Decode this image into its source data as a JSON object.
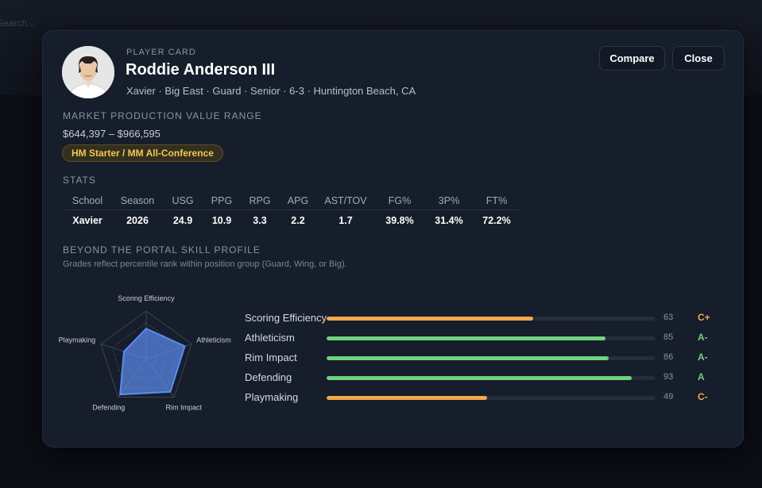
{
  "backdrop": {
    "label": "Search..."
  },
  "header": {
    "eyebrow": "PLAYER CARD",
    "name": "Roddie Anderson III",
    "meta": "Xavier · Big East · Guard · Senior · 6-3 · Huntington Beach, CA",
    "avatar_icon": "player-photo"
  },
  "actions": {
    "compare_label": "Compare",
    "close_label": "Close"
  },
  "market": {
    "section_label": "MARKET PRODUCTION VALUE RANGE",
    "range": "$644,397 – $966,595",
    "badge": "HM Starter / MM All-Conference"
  },
  "stats": {
    "section_label": "STATS",
    "headers": [
      "School",
      "Season",
      "USG",
      "PPG",
      "RPG",
      "APG",
      "AST/TOV",
      "FG%",
      "3P%",
      "FT%"
    ],
    "rows": [
      [
        "Xavier",
        "2026",
        "24.9",
        "10.9",
        "3.3",
        "2.2",
        "1.7",
        "39.8%",
        "31.4%",
        "72.2%"
      ]
    ]
  },
  "skills": {
    "section_label": "BEYOND THE PORTAL SKILL PROFILE",
    "subtitle": "Grades reflect percentile rank within position group (Guard, Wing, or Big).",
    "items": [
      {
        "name": "Scoring Efficiency",
        "score": "63",
        "grade": "C+",
        "color": "#f2a94a"
      },
      {
        "name": "Athleticism",
        "score": "85",
        "grade": "A-",
        "color": "#6fd37f"
      },
      {
        "name": "Rim Impact",
        "score": "86",
        "grade": "A-",
        "color": "#6fd37f"
      },
      {
        "name": "Defending",
        "score": "93",
        "grade": "A",
        "color": "#6fd37f"
      },
      {
        "name": "Playmaking",
        "score": "49",
        "grade": "C-",
        "color": "#f2a94a"
      }
    ],
    "radar_labels": [
      "Scoring Efficiency",
      "Athleticism",
      "Rim Impact",
      "Defending",
      "Playmaking"
    ],
    "radar_color": "#5b8def"
  }
}
